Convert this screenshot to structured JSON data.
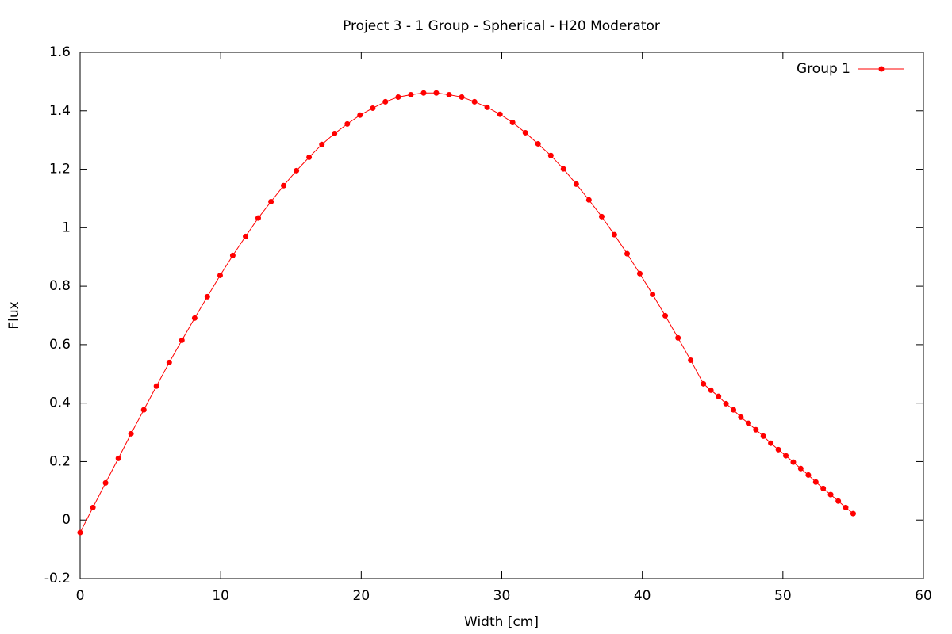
{
  "chart_data": {
    "type": "line",
    "title": "Project 3 - 1 Group - Spherical - H20 Moderator",
    "x_label": "Width [cm]",
    "y_label": "Flux",
    "x": [
      0,
      0.91,
      1.81,
      2.72,
      3.62,
      4.53,
      5.43,
      6.34,
      7.24,
      8.15,
      9.05,
      9.96,
      10.86,
      11.77,
      12.67,
      13.58,
      14.48,
      15.39,
      16.29,
      17.2,
      18.1,
      19.01,
      19.91,
      20.82,
      21.72,
      22.63,
      23.53,
      24.44,
      25.34,
      26.25,
      27.15,
      28.06,
      28.96,
      29.87,
      30.77,
      31.68,
      32.58,
      33.49,
      34.39,
      35.3,
      36.2,
      37.11,
      38.01,
      38.92,
      39.82,
      40.73,
      41.63,
      42.54,
      43.44,
      44.35,
      44.88,
      45.42,
      45.95,
      46.48,
      47.01,
      47.55,
      48.08,
      48.61,
      49.14,
      49.68,
      50.21,
      50.74,
      51.27,
      51.81,
      52.34,
      52.87,
      53.4,
      53.94,
      54.47,
      55.0
    ],
    "series": [
      {
        "name": "Group 1",
        "color": "#ff0000",
        "values": [
          -0.043,
          0.043,
          0.127,
          0.211,
          0.295,
          0.377,
          0.458,
          0.539,
          0.615,
          0.691,
          0.764,
          0.837,
          0.905,
          0.97,
          1.033,
          1.089,
          1.144,
          1.195,
          1.241,
          1.285,
          1.322,
          1.355,
          1.385,
          1.409,
          1.431,
          1.447,
          1.455,
          1.461,
          1.461,
          1.455,
          1.447,
          1.431,
          1.412,
          1.388,
          1.36,
          1.325,
          1.287,
          1.247,
          1.201,
          1.149,
          1.095,
          1.038,
          0.976,
          0.911,
          0.843,
          0.772,
          0.699,
          0.623,
          0.547,
          0.466,
          0.444,
          0.423,
          0.398,
          0.377,
          0.352,
          0.331,
          0.309,
          0.287,
          0.263,
          0.241,
          0.22,
          0.198,
          0.176,
          0.154,
          0.13,
          0.108,
          0.087,
          0.065,
          0.043,
          0.022
        ]
      }
    ],
    "xlim": [
      0,
      60
    ],
    "xticks": [
      0,
      10,
      20,
      30,
      40,
      50,
      60
    ],
    "ylim": [
      -0.2,
      1.6
    ],
    "yticks": [
      -0.2,
      0,
      0.2,
      0.4,
      0.6,
      0.8,
      1,
      1.2,
      1.4,
      1.6
    ],
    "legend": "top-right"
  }
}
